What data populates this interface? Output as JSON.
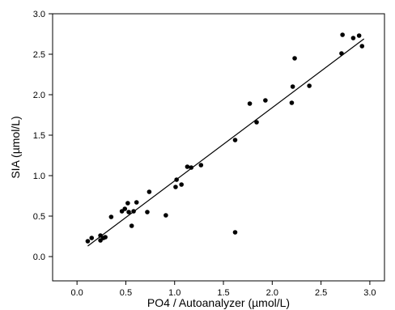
{
  "chart_data": {
    "type": "scatter",
    "xlabel": "PO4 / Autoanalyzer (µmol/L)",
    "ylabel": "SIA (µmol/L)",
    "xlim": [
      -0.25,
      3.15
    ],
    "ylim": [
      -0.3,
      3.0
    ],
    "xticks": [
      0.0,
      0.5,
      1.0,
      1.5,
      2.0,
      2.5,
      3.0
    ],
    "yticks": [
      0.0,
      0.5,
      1.0,
      1.5,
      2.0,
      2.5,
      3.0
    ],
    "xtick_labels": [
      "0.0",
      "0.5",
      "1.0",
      "1.5",
      "2.0",
      "2.5",
      "3.0"
    ],
    "ytick_labels": [
      "0.0",
      "0.5",
      "1.0",
      "1.5",
      "2.0",
      "2.5",
      "3.0"
    ],
    "grid": false,
    "series": [
      {
        "marker": "filled-circle",
        "color": "#000000",
        "points": [
          [
            0.11,
            0.19
          ],
          [
            0.15,
            0.23
          ],
          [
            0.24,
            0.2
          ],
          [
            0.24,
            0.26
          ],
          [
            0.27,
            0.23
          ],
          [
            0.29,
            0.24
          ],
          [
            0.35,
            0.49
          ],
          [
            0.46,
            0.56
          ],
          [
            0.49,
            0.59
          ],
          [
            0.52,
            0.66
          ],
          [
            0.53,
            0.55
          ],
          [
            0.56,
            0.38
          ],
          [
            0.58,
            0.56
          ],
          [
            0.61,
            0.67
          ],
          [
            0.72,
            0.55
          ],
          [
            0.74,
            0.8
          ],
          [
            0.91,
            0.51
          ],
          [
            1.01,
            0.86
          ],
          [
            1.02,
            0.95
          ],
          [
            1.07,
            0.89
          ],
          [
            1.13,
            1.11
          ],
          [
            1.17,
            1.1
          ],
          [
            1.27,
            1.13
          ],
          [
            1.62,
            1.44
          ],
          [
            1.62,
            0.3
          ],
          [
            1.77,
            1.89
          ],
          [
            1.84,
            1.66
          ],
          [
            1.93,
            1.93
          ],
          [
            2.2,
            1.9
          ],
          [
            2.21,
            2.1
          ],
          [
            2.23,
            2.45
          ],
          [
            2.38,
            2.11
          ],
          [
            2.71,
            2.51
          ],
          [
            2.72,
            2.74
          ],
          [
            2.83,
            2.7
          ],
          [
            2.89,
            2.73
          ],
          [
            2.92,
            2.6
          ]
        ]
      }
    ],
    "fit_line": {
      "type": "linear",
      "from": [
        0.11,
        0.13
      ],
      "to": [
        2.94,
        2.69
      ],
      "color": "#000000"
    }
  }
}
